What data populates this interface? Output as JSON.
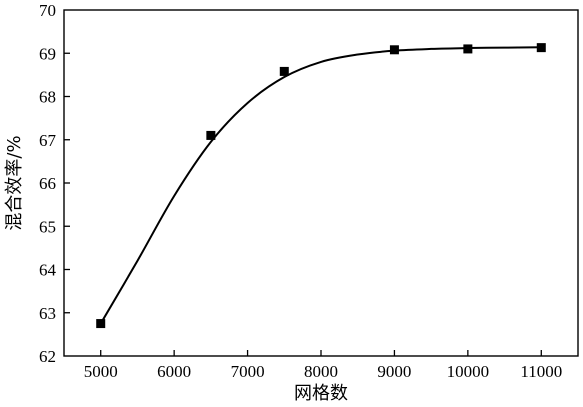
{
  "chart_data": {
    "type": "scatter",
    "title": "",
    "xlabel": "网格数",
    "ylabel": "混合效率/%",
    "xlim": [
      4500,
      11500
    ],
    "ylim": [
      62,
      70
    ],
    "x_ticks": [
      5000,
      6000,
      7000,
      8000,
      9000,
      10000,
      11000
    ],
    "y_ticks": [
      62,
      63,
      64,
      65,
      66,
      67,
      68,
      69,
      70
    ],
    "grid": false,
    "legend": "none",
    "series": [
      {
        "marker": "square",
        "color": "#000000",
        "x": [
          5000,
          6500,
          7500,
          9000,
          10000,
          11000
        ],
        "y": [
          62.75,
          67.1,
          68.58,
          69.08,
          69.1,
          69.13
        ]
      }
    ],
    "fit_curve": {
      "color": "#000000",
      "x": [
        5000,
        5500,
        6000,
        6500,
        7000,
        7500,
        8000,
        8500,
        9000,
        9500,
        10000,
        10500,
        11000
      ],
      "y": [
        62.75,
        64.2,
        65.7,
        66.95,
        67.85,
        68.45,
        68.8,
        68.97,
        69.06,
        69.1,
        69.12,
        69.13,
        69.14
      ]
    }
  }
}
